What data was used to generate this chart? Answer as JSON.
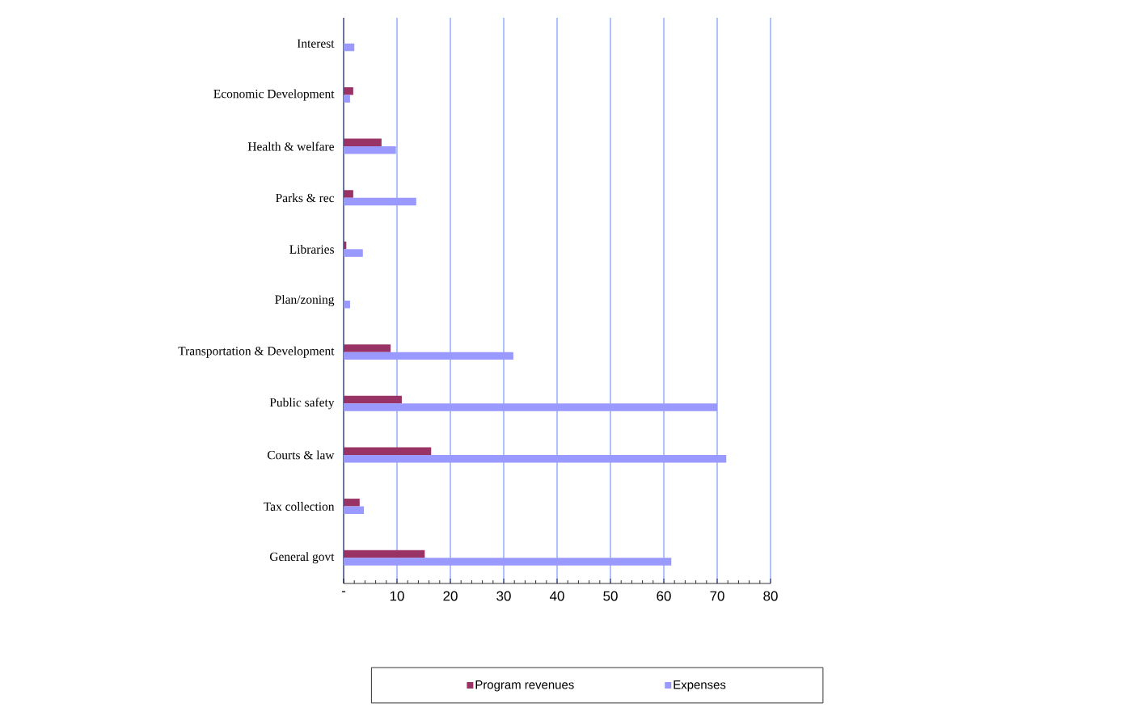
{
  "chart_data": {
    "type": "bar",
    "orientation": "horizontal",
    "categories": [
      "Interest",
      "Economic Development",
      "Health & welfare",
      "Parks & rec",
      "Libraries",
      "Plan/zoning",
      "Transportation & Development",
      "Public safety",
      "Courts & law",
      "Tax collection",
      "General govt"
    ],
    "series": [
      {
        "name": "Program revenues",
        "color": "#993366",
        "values": [
          0,
          1.8,
          7.1,
          1.8,
          0.5,
          0,
          8.8,
          10.9,
          16.4,
          3.0,
          15.2
        ]
      },
      {
        "name": "Expenses",
        "color": "#9999ff",
        "values": [
          2.0,
          1.2,
          9.8,
          13.6,
          3.6,
          1.2,
          31.8,
          70.0,
          71.7,
          3.8,
          61.4
        ]
      }
    ],
    "xlim": [
      0,
      80
    ],
    "xticks": [
      {
        "value": 0,
        "label": "-"
      },
      10,
      20,
      30,
      40,
      50,
      60,
      70,
      80
    ],
    "grid": "x",
    "legend": "bottom"
  }
}
